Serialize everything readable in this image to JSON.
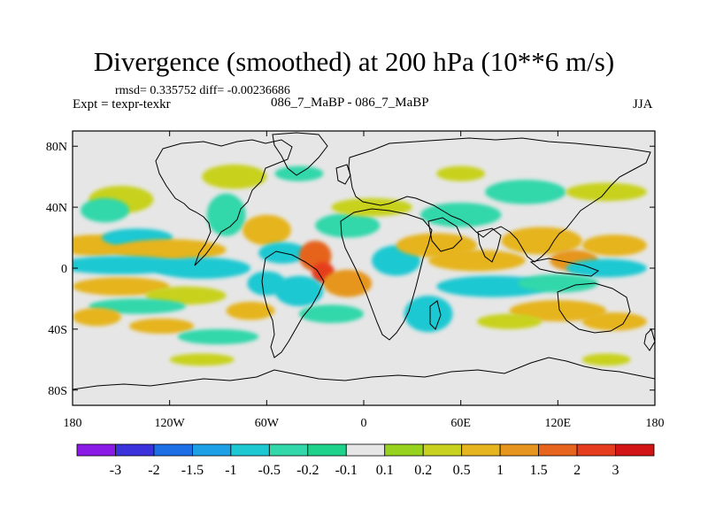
{
  "chart_data": {
    "type": "heatmap",
    "title": "Divergence (smoothed) at 200 hPa (10**6 m/s)",
    "stats_label": "rmsd= 0.335752 diff= -0.00236686",
    "left_label": "Expt = texpr-texkr",
    "center_label": "086_7_MaBP - 086_7_MaBP",
    "right_label": "JJA",
    "x_axis": {
      "range": [
        -180,
        180
      ],
      "ticks": [
        -180,
        -120,
        -60,
        0,
        60,
        120,
        180
      ],
      "tick_labels": [
        "180",
        "120W",
        "60W",
        "0",
        "60E",
        "120E",
        "180"
      ]
    },
    "y_axis": {
      "range": [
        -90,
        90
      ],
      "ticks": [
        80,
        40,
        0,
        -40,
        -80
      ],
      "tick_labels": [
        "80N",
        "40N",
        "0",
        "40S",
        "80S"
      ]
    },
    "colorbar": {
      "levels": [
        "-3",
        "-2",
        "-1.5",
        "-1",
        "-0.5",
        "-0.2",
        "-0.1",
        "0.1",
        "0.2",
        "0.5",
        "1",
        "1.5",
        "2",
        "3"
      ],
      "colors": [
        "#8b1ae6",
        "#3c32dc",
        "#1e6ee6",
        "#1ea0e6",
        "#1ec8d2",
        "#32d7aa",
        "#1ed28c",
        "#e6e6e6",
        "#96d21e",
        "#c8d21e",
        "#e6b41e",
        "#e6961e",
        "#e6641e",
        "#e63c1e",
        "#d21414"
      ]
    },
    "fields": [
      {
        "lon": -150,
        "lat": 45,
        "value": 0.35,
        "rx": 20,
        "ry": 9
      },
      {
        "lon": -160,
        "lat": 38,
        "value": -0.25,
        "rx": 15,
        "ry": 8
      },
      {
        "lon": -165,
        "lat": 15,
        "value": 0.8,
        "rx": 25,
        "ry": 7
      },
      {
        "lon": -140,
        "lat": 20,
        "value": -0.6,
        "rx": 22,
        "ry": 6
      },
      {
        "lon": -120,
        "lat": 12,
        "value": 0.7,
        "rx": 35,
        "ry": 7
      },
      {
        "lon": -150,
        "lat": 2,
        "value": -0.8,
        "rx": 40,
        "ry": 6
      },
      {
        "lon": -100,
        "lat": 0,
        "value": -0.9,
        "rx": 30,
        "ry": 7
      },
      {
        "lon": -150,
        "lat": -12,
        "value": 0.6,
        "rx": 30,
        "ry": 6
      },
      {
        "lon": -110,
        "lat": -18,
        "value": 0.4,
        "rx": 25,
        "ry": 6
      },
      {
        "lon": -140,
        "lat": -25,
        "value": -0.4,
        "rx": 30,
        "ry": 5
      },
      {
        "lon": -165,
        "lat": -32,
        "value": 0.7,
        "rx": 15,
        "ry": 6
      },
      {
        "lon": -125,
        "lat": -38,
        "value": 0.5,
        "rx": 20,
        "ry": 5
      },
      {
        "lon": -90,
        "lat": -45,
        "value": -0.3,
        "rx": 25,
        "ry": 5
      },
      {
        "lon": -70,
        "lat": -28,
        "value": 0.5,
        "rx": 15,
        "ry": 6
      },
      {
        "lon": -80,
        "lat": 60,
        "value": 0.3,
        "rx": 20,
        "ry": 8
      },
      {
        "lon": -85,
        "lat": 35,
        "value": -0.5,
        "rx": 12,
        "ry": 14
      },
      {
        "lon": -60,
        "lat": 25,
        "value": 0.6,
        "rx": 15,
        "ry": 10
      },
      {
        "lon": -50,
        "lat": 10,
        "value": -0.6,
        "rx": 15,
        "ry": 7
      },
      {
        "lon": -30,
        "lat": 8,
        "value": 1.8,
        "rx": 10,
        "ry": 10
      },
      {
        "lon": -25,
        "lat": -3,
        "value": 2.5,
        "rx": 7,
        "ry": 7
      },
      {
        "lon": -10,
        "lat": -10,
        "value": 1.1,
        "rx": 15,
        "ry": 9
      },
      {
        "lon": -40,
        "lat": -15,
        "value": -0.8,
        "rx": 15,
        "ry": 10
      },
      {
        "lon": -60,
        "lat": -10,
        "value": -0.9,
        "rx": 12,
        "ry": 8
      },
      {
        "lon": -20,
        "lat": -30,
        "value": -0.4,
        "rx": 20,
        "ry": 6
      },
      {
        "lon": -10,
        "lat": 28,
        "value": -0.5,
        "rx": 20,
        "ry": 8
      },
      {
        "lon": 5,
        "lat": 40,
        "value": 0.4,
        "rx": 25,
        "ry": 6
      },
      {
        "lon": 20,
        "lat": 5,
        "value": -0.6,
        "rx": 15,
        "ry": 10
      },
      {
        "lon": 45,
        "lat": 15,
        "value": 0.9,
        "rx": 25,
        "ry": 8
      },
      {
        "lon": 70,
        "lat": 5,
        "value": 0.7,
        "rx": 30,
        "ry": 7
      },
      {
        "lon": 60,
        "lat": 35,
        "value": -0.4,
        "rx": 25,
        "ry": 8
      },
      {
        "lon": 40,
        "lat": -30,
        "value": -0.8,
        "rx": 15,
        "ry": 12
      },
      {
        "lon": 80,
        "lat": -12,
        "value": -0.7,
        "rx": 35,
        "ry": 7
      },
      {
        "lon": 110,
        "lat": 18,
        "value": 0.7,
        "rx": 25,
        "ry": 9
      },
      {
        "lon": 130,
        "lat": 5,
        "value": 1.0,
        "rx": 15,
        "ry": 7
      },
      {
        "lon": 155,
        "lat": 15,
        "value": 0.5,
        "rx": 20,
        "ry": 7
      },
      {
        "lon": 150,
        "lat": 0,
        "value": -0.7,
        "rx": 25,
        "ry": 6
      },
      {
        "lon": 120,
        "lat": -10,
        "value": -0.5,
        "rx": 25,
        "ry": 6
      },
      {
        "lon": 120,
        "lat": -28,
        "value": 0.6,
        "rx": 30,
        "ry": 7
      },
      {
        "lon": 155,
        "lat": -35,
        "value": 0.5,
        "rx": 20,
        "ry": 6
      },
      {
        "lon": 90,
        "lat": -35,
        "value": 0.4,
        "rx": 20,
        "ry": 5
      },
      {
        "lon": 100,
        "lat": 50,
        "value": -0.3,
        "rx": 25,
        "ry": 8
      },
      {
        "lon": 150,
        "lat": 50,
        "value": 0.3,
        "rx": 25,
        "ry": 6
      },
      {
        "lon": 60,
        "lat": 62,
        "value": 0.3,
        "rx": 15,
        "ry": 5
      },
      {
        "lon": -40,
        "lat": 62,
        "value": -0.3,
        "rx": 15,
        "ry": 5
      },
      {
        "lon": 150,
        "lat": -60,
        "value": 0.3,
        "rx": 15,
        "ry": 4
      },
      {
        "lon": -100,
        "lat": -60,
        "value": 0.3,
        "rx": 20,
        "ry": 4
      }
    ]
  }
}
